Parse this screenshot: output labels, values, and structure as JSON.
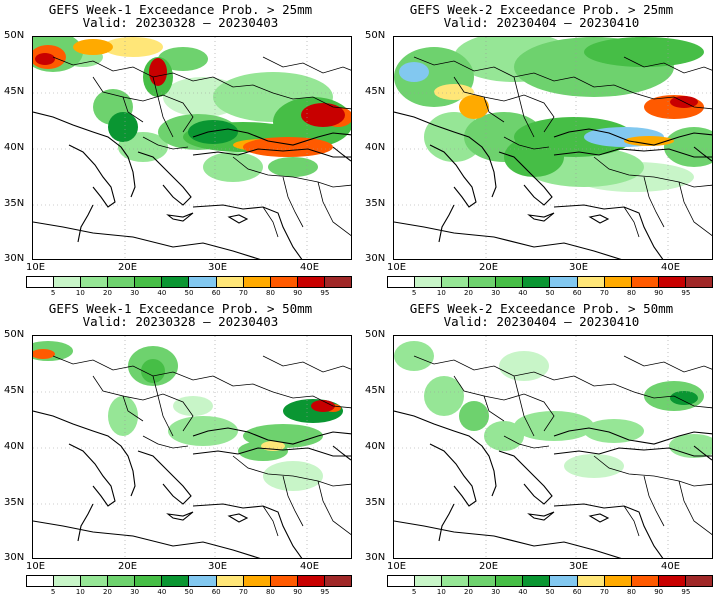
{
  "panels": [
    {
      "title_line1": "GEFS Week-1 Exceedance Prob. > 25mm",
      "title_line2": "Valid: 20230328 – 20230403"
    },
    {
      "title_line1": "GEFS Week-2 Exceedance Prob. > 25mm",
      "title_line2": "Valid: 20230404 – 20230410"
    },
    {
      "title_line1": "GEFS Week-1 Exceedance Prob. > 50mm",
      "title_line2": "Valid: 20230328 – 20230403"
    },
    {
      "title_line1": "GEFS Week-2 Exceedance Prob. > 50mm",
      "title_line2": "Valid: 20230404 – 20230410"
    }
  ],
  "lat_labels": [
    "50N",
    "45N",
    "40N",
    "35N",
    "30N"
  ],
  "lon_labels": [
    "10E",
    "20E",
    "30E",
    "40E"
  ],
  "colorbar": {
    "ticks": [
      "5",
      "10",
      "20",
      "30",
      "40",
      "50",
      "60",
      "70",
      "80",
      "90",
      "95"
    ],
    "colors": [
      "#ffffff",
      "#c8f5c8",
      "#96e696",
      "#6ed26e",
      "#46be46",
      "#0a9632",
      "#82c8f0",
      "#ffe678",
      "#ffaa00",
      "#ff5a00",
      "#c80000",
      "#a02828"
    ]
  }
}
